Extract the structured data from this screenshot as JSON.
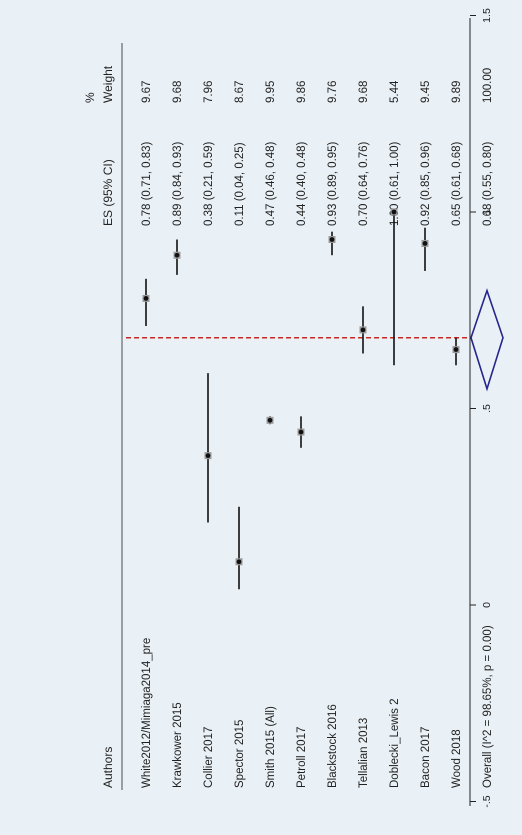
{
  "chart_data": {
    "type": "forest",
    "orientation": "rotated-90-ccw",
    "columns": {
      "study": "Authors",
      "effect": "ES (95% CI)",
      "weight_line1": "%",
      "weight_line2": "Weight"
    },
    "axis": {
      "ticks": [
        -0.5,
        0,
        0.5,
        1,
        1.5
      ],
      "tick_labels": [
        "-.5",
        "0",
        ".5",
        "1",
        "1.5"
      ],
      "range": [
        -0.5,
        1.5
      ]
    },
    "studies": [
      {
        "name": "White2012/Mimiaga2014_pre",
        "es": 0.78,
        "lo": 0.71,
        "hi": 0.83,
        "ci_text": "0.78 (0.71, 0.83)",
        "weight": "9.67"
      },
      {
        "name": "Krawkower 2015",
        "es": 0.89,
        "lo": 0.84,
        "hi": 0.93,
        "ci_text": "0.89 (0.84, 0.93)",
        "weight": "9.68"
      },
      {
        "name": "Collier 2017",
        "es": 0.38,
        "lo": 0.21,
        "hi": 0.59,
        "ci_text": "0.38 (0.21, 0.59)",
        "weight": "7.96"
      },
      {
        "name": "Spector 2015",
        "es": 0.11,
        "lo": 0.04,
        "hi": 0.25,
        "ci_text": "0.11 (0.04, 0.25)",
        "weight": "8.67"
      },
      {
        "name": "Smith 2015 (All)",
        "es": 0.47,
        "lo": 0.46,
        "hi": 0.48,
        "ci_text": "0.47 (0.46, 0.48)",
        "weight": "9.95"
      },
      {
        "name": "Petroll 2017",
        "es": 0.44,
        "lo": 0.4,
        "hi": 0.48,
        "ci_text": "0.44 (0.40, 0.48)",
        "weight": "9.86"
      },
      {
        "name": "Blackstock 2016",
        "es": 0.93,
        "lo": 0.89,
        "hi": 0.95,
        "ci_text": "0.93 (0.89, 0.95)",
        "weight": "9.76"
      },
      {
        "name": "Tellalian 2013",
        "es": 0.7,
        "lo": 0.64,
        "hi": 0.76,
        "ci_text": "0.70 (0.64, 0.76)",
        "weight": "9.68"
      },
      {
        "name": "Doblecki_Lewis 2",
        "es": 1.0,
        "lo": 0.61,
        "hi": 1.0,
        "ci_text": "1.00 (0.61, 1.00)",
        "weight": "5.44"
      },
      {
        "name": "Bacon 2017",
        "es": 0.92,
        "lo": 0.85,
        "hi": 0.96,
        "ci_text": "0.92 (0.85, 0.96)",
        "weight": "9.45"
      },
      {
        "name": "Wood 2018",
        "es": 0.65,
        "lo": 0.61,
        "hi": 0.68,
        "ci_text": "0.65 (0.61, 0.68)",
        "weight": "9.89"
      }
    ],
    "overall": {
      "name": "Overall  (I^2 = 98.65%, p = 0.00)",
      "es": 0.68,
      "lo": 0.55,
      "hi": 0.8,
      "ci_text": "0.68 (0.55, 0.80)",
      "weight": "100.00"
    },
    "colors": {
      "background": "#eaf1f6",
      "point": "#111111",
      "ci_line": "#111111",
      "pooled_line": "#c8281e",
      "diamond": "#26268c",
      "axis": "#222222",
      "text": "#222222"
    }
  }
}
